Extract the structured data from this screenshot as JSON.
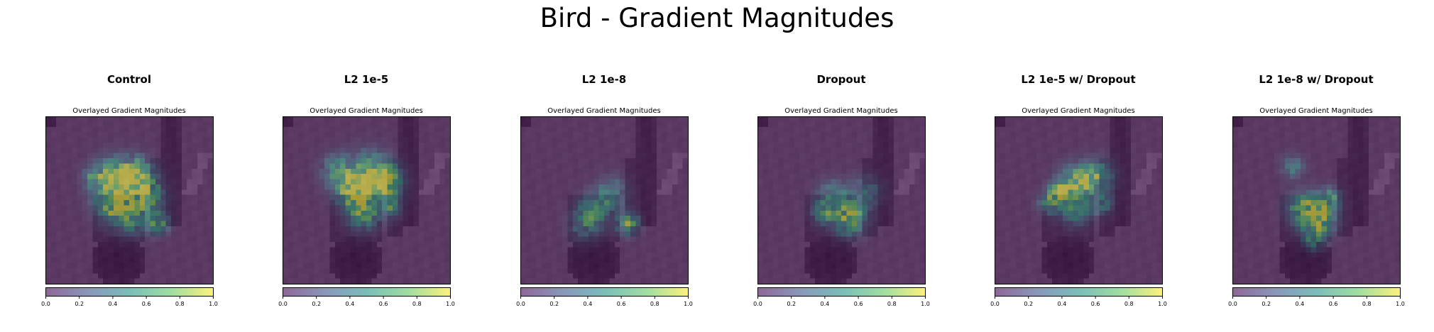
{
  "figure": {
    "title": "Bird - Gradient Magnitudes"
  },
  "chart_data": {
    "type": "heatmap",
    "subplot_title": "Overlayed Gradient Magnitudes",
    "grid_size": 32,
    "colormap": "viridis",
    "overlay_alpha": 0.5,
    "colorbar": {
      "range": [
        0,
        1
      ],
      "ticks": [
        "0.0",
        "0.2",
        "0.4",
        "0.6",
        "0.8",
        "1.0"
      ]
    },
    "panels": [
      {
        "name": "Control",
        "blobs": [
          [
            13,
            12,
            4,
            0.95
          ],
          [
            17,
            11,
            3,
            0.85
          ],
          [
            19,
            15,
            3,
            0.7
          ],
          [
            12,
            17,
            3,
            0.6
          ],
          [
            21,
            20,
            2,
            0.6
          ],
          [
            16,
            19,
            3,
            0.5
          ],
          [
            9,
            11,
            2,
            0.4
          ]
        ]
      },
      {
        "name": "L2 1e-5",
        "blobs": [
          [
            16,
            11,
            4,
            0.9
          ],
          [
            13,
            14,
            3,
            0.8
          ],
          [
            19,
            12,
            3,
            0.8
          ],
          [
            15,
            18,
            3,
            0.6
          ],
          [
            10,
            10,
            3,
            0.5
          ],
          [
            20,
            17,
            2,
            0.5
          ]
        ]
      },
      {
        "name": "L2 1e-8",
        "blobs": [
          [
            20,
            20,
            2,
            0.75
          ],
          [
            14,
            17,
            3,
            0.45
          ],
          [
            17,
            14,
            3,
            0.35
          ],
          [
            12,
            20,
            3,
            0.4
          ]
        ]
      },
      {
        "name": "Dropout",
        "blobs": [
          [
            17,
            19,
            3,
            0.8
          ],
          [
            14,
            15,
            3,
            0.5
          ],
          [
            12,
            18,
            2,
            0.5
          ],
          [
            20,
            14,
            3,
            0.35
          ]
        ]
      },
      {
        "name": "L2 1e-5 w/ Dropout",
        "blobs": [
          [
            15,
            12,
            3,
            0.85
          ],
          [
            12,
            14,
            2,
            0.75
          ],
          [
            19,
            11,
            3,
            0.6
          ],
          [
            15,
            17,
            3,
            0.55
          ],
          [
            10,
            16,
            2,
            0.5
          ],
          [
            20,
            16,
            2,
            0.4
          ]
        ]
      },
      {
        "name": "L2 1e-8 w/ Dropout",
        "blobs": [
          [
            16,
            19,
            3,
            0.9
          ],
          [
            13,
            17,
            3,
            0.6
          ],
          [
            18,
            15,
            2,
            0.5
          ],
          [
            11,
            9,
            2,
            0.45
          ],
          [
            15,
            23,
            2,
            0.4
          ]
        ]
      }
    ]
  }
}
